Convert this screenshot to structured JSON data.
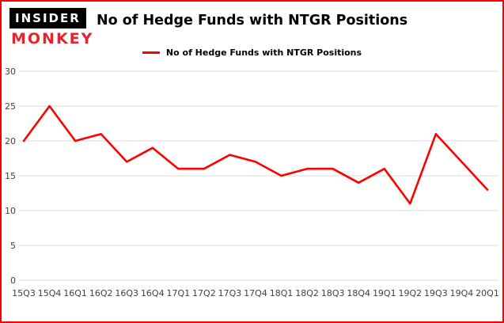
{
  "header": {
    "brand_line1": "INSIDER",
    "brand_line2": "MONKEY",
    "title": "No of Hedge Funds with NTGR Positions"
  },
  "legend": {
    "label": "No of Hedge Funds with NTGR Positions",
    "color": "#fe0000"
  },
  "colors": {
    "frame_border": "#fa0000",
    "brand_red": "#e8232d",
    "line_red": "#fe0000",
    "grid_gray": "#d9d9d9",
    "tick_text": "#404040"
  },
  "chart_data": {
    "type": "line",
    "title": "No of Hedge Funds with NTGR Positions",
    "categories": [
      "15Q3",
      "15Q4",
      "16Q1",
      "16Q2",
      "16Q3",
      "16Q4",
      "17Q1",
      "17Q2",
      "17Q3",
      "17Q4",
      "18Q1",
      "18Q2",
      "18Q3",
      "18Q4",
      "19Q1",
      "19Q2",
      "19Q3",
      "19Q4",
      "20Q1"
    ],
    "series": [
      {
        "name": "No of Hedge Funds with NTGR Positions",
        "color": "#fe0000",
        "values": [
          20,
          25,
          20,
          21,
          17,
          19,
          16,
          16,
          18,
          17,
          15,
          16,
          16,
          14,
          16,
          11,
          21,
          17,
          13
        ]
      }
    ],
    "xlabel": "",
    "ylabel": "",
    "ylim": [
      0,
      30
    ],
    "yticks": [
      0,
      5,
      10,
      15,
      20,
      25,
      30
    ],
    "grid": true,
    "grid_color": "#d9d9d9",
    "tick_color": "#404040",
    "legend_position": "top-center"
  }
}
